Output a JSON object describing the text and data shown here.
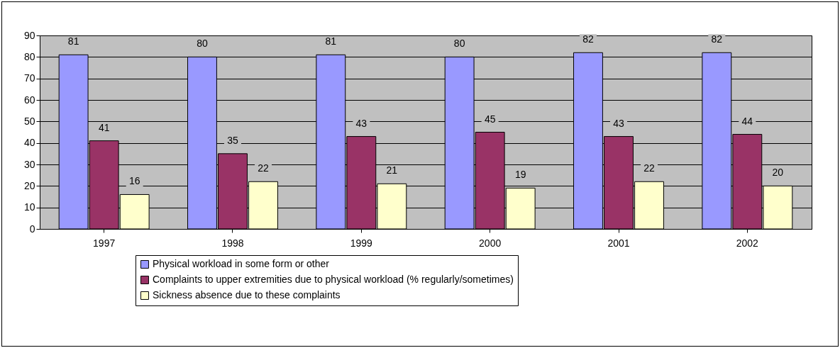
{
  "chart_data": {
    "type": "bar",
    "categories": [
      "1997",
      "1998",
      "1999",
      "2000",
      "2001",
      "2002"
    ],
    "series": [
      {
        "name": "Physical workload in some form or other",
        "color": "#9999ff",
        "values": [
          81,
          80,
          81,
          80,
          82,
          82
        ]
      },
      {
        "name": "Complaints to upper extremities due to physical workload (% regularly/sometimes)",
        "color": "#993366",
        "values": [
          41,
          35,
          43,
          45,
          43,
          44
        ]
      },
      {
        "name": "Sickness absence due to these complaints",
        "color": "#ffffcc",
        "values": [
          16,
          22,
          21,
          19,
          22,
          20
        ]
      }
    ],
    "ylim": [
      0,
      90
    ],
    "yticks": [
      0,
      10,
      20,
      30,
      40,
      50,
      60,
      70,
      80,
      90
    ],
    "grid": "y",
    "legend": "bottom",
    "data_labels": true
  }
}
